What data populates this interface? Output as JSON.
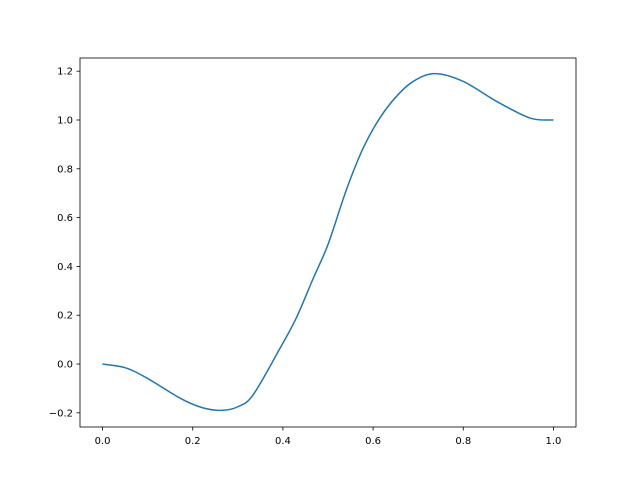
{
  "chart_data": {
    "type": "line",
    "title": "",
    "xlabel": "",
    "ylabel": "",
    "xlim": [
      -0.05,
      1.05
    ],
    "ylim": [
      -0.258,
      1.254
    ],
    "xticks": [
      "0.0",
      "0.2",
      "0.4",
      "0.6",
      "0.8",
      "1.0"
    ],
    "yticks": [
      "−0.2",
      "0.0",
      "0.2",
      "0.4",
      "0.6",
      "0.8",
      "1.0",
      "1.2"
    ],
    "grid": false,
    "series": [
      {
        "color": "#1f77b4",
        "x": [
          0.0,
          0.05,
          0.098,
          0.172,
          0.22,
          0.264,
          0.3,
          0.334,
          0.394,
          0.43,
          0.467,
          0.5,
          0.541,
          0.578,
          0.615,
          0.652,
          0.689,
          0.737,
          0.8,
          0.874,
          0.948,
          1.0
        ],
        "y": [
          0.0,
          -0.015,
          -0.057,
          -0.14,
          -0.178,
          -0.19,
          -0.175,
          -0.126,
          0.066,
          0.19,
          0.35,
          0.49,
          0.715,
          0.885,
          1.008,
          1.097,
          1.158,
          1.19,
          1.158,
          1.076,
          1.008,
          1.0
        ]
      }
    ]
  }
}
